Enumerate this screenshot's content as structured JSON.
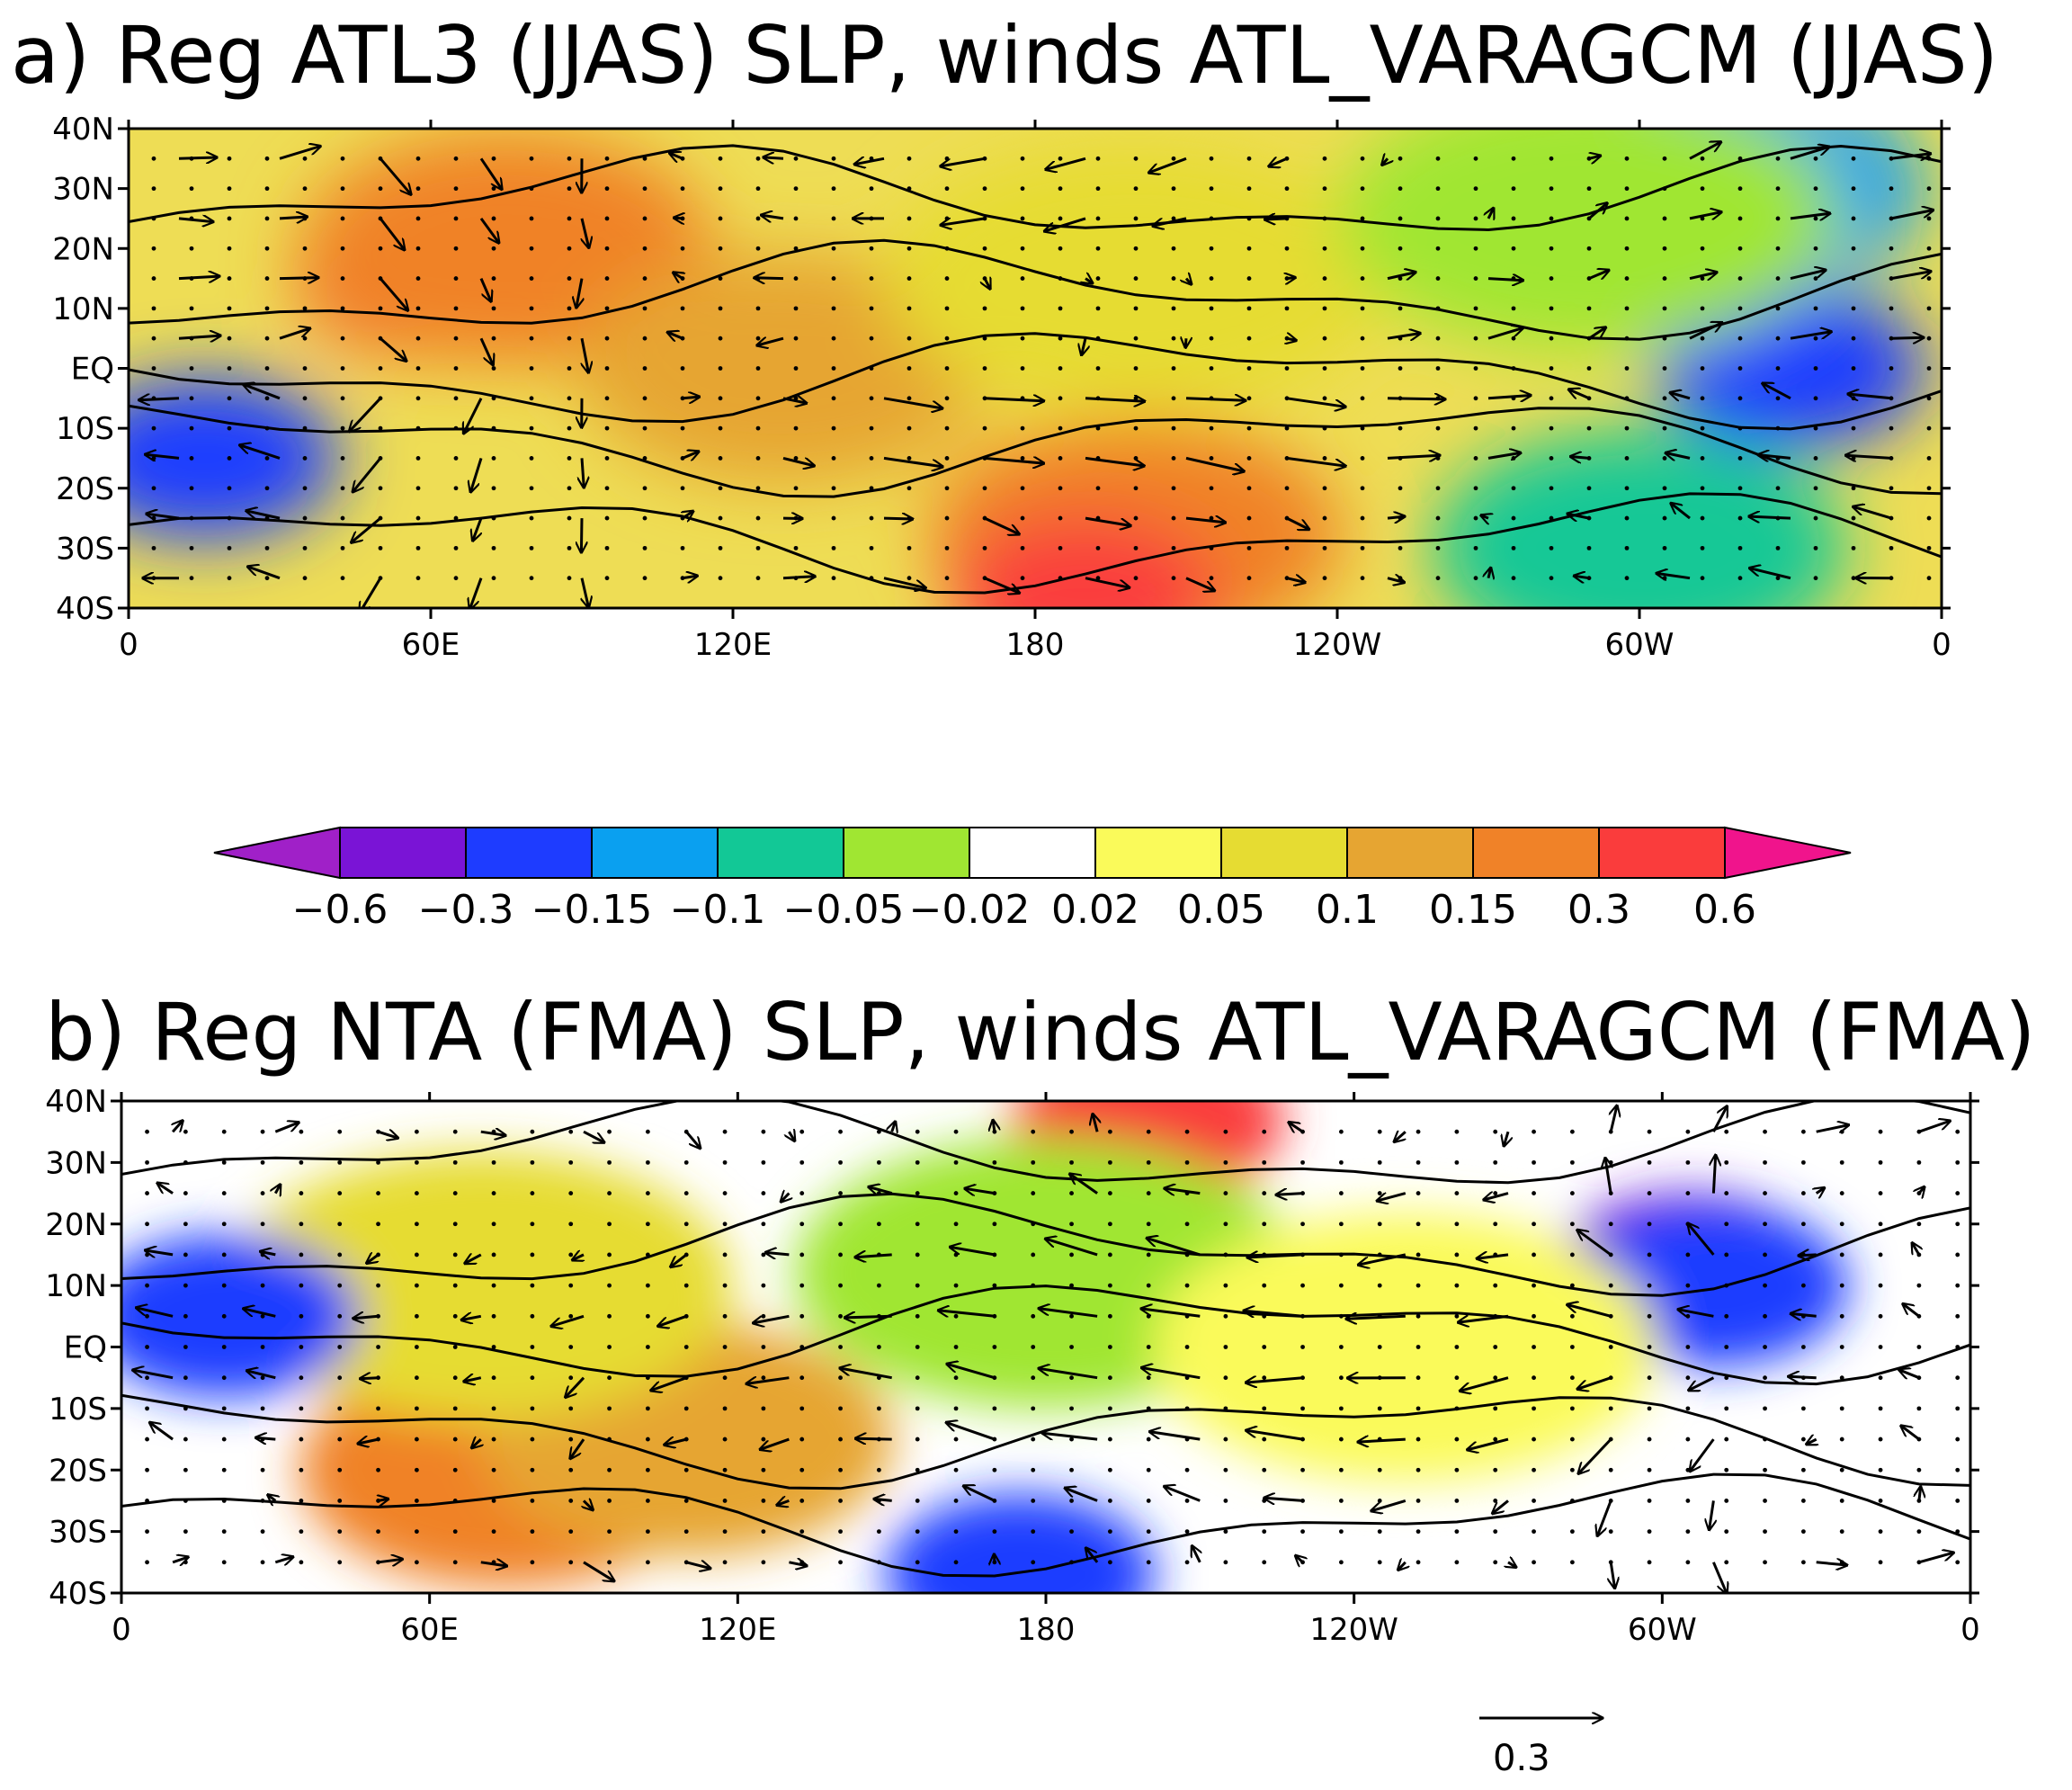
{
  "chart_data": [
    {
      "type": "heatmap",
      "title": "a) Reg ATL3 (JJAS) SLP, winds ATL_VARAGCM (JJAS)",
      "x_ticks": [
        "0",
        "60E",
        "120E",
        "180",
        "120W",
        "60W",
        "0"
      ],
      "y_ticks": [
        "40N",
        "30N",
        "20N",
        "10N",
        "EQ",
        "10S",
        "20S",
        "30S",
        "40S"
      ],
      "xlim": [
        0,
        360
      ],
      "ylim": [
        -40,
        40
      ],
      "field_regions": [
        {
          "lon": 60,
          "lat": 15,
          "value": 0.3
        },
        {
          "lon": 75,
          "lat": 20,
          "value": 0.15
        },
        {
          "lon": 130,
          "lat": 0,
          "value": 0.1
        },
        {
          "lon": 200,
          "lat": -28,
          "value": 0.15
        },
        {
          "lon": 190,
          "lat": -38,
          "value": 0.3
        },
        {
          "lon": 200,
          "lat": 15,
          "value": 0.05
        },
        {
          "lon": 15,
          "lat": -15,
          "value": -0.3
        },
        {
          "lon": 330,
          "lat": 0,
          "value": -0.3
        },
        {
          "lon": 315,
          "lat": 30,
          "value": -0.15
        },
        {
          "lon": 290,
          "lat": 25,
          "value": -0.05
        },
        {
          "lon": 300,
          "lat": -30,
          "value": -0.1
        }
      ]
    },
    {
      "type": "heatmap",
      "title": "b) Reg NTA (FMA) SLP, winds ATL_VARAGCM (FMA)",
      "x_ticks": [
        "0",
        "60E",
        "120E",
        "180",
        "120W",
        "60W",
        "0"
      ],
      "y_ticks": [
        "40N",
        "30N",
        "20N",
        "10N",
        "EQ",
        "10S",
        "20S",
        "30S",
        "40S"
      ],
      "xlim": [
        0,
        360
      ],
      "ylim": [
        -40,
        40
      ],
      "field_regions": [
        {
          "lon": 200,
          "lat": 37,
          "value": 0.3
        },
        {
          "lon": 75,
          "lat": -20,
          "value": 0.15
        },
        {
          "lon": 110,
          "lat": -15,
          "value": 0.1
        },
        {
          "lon": 70,
          "lat": 10,
          "value": 0.05
        },
        {
          "lon": 20,
          "lat": 5,
          "value": -0.3
        },
        {
          "lon": 305,
          "lat": 12,
          "value": -0.6
        },
        {
          "lon": 310,
          "lat": 10,
          "value": -0.3
        },
        {
          "lon": 175,
          "lat": -37,
          "value": -0.3
        },
        {
          "lon": 180,
          "lat": 12,
          "value": -0.05
        },
        {
          "lon": 250,
          "lat": 0,
          "value": 0.02
        }
      ]
    }
  ],
  "colorbar": {
    "tick_labels": [
      "−0.6",
      "−0.3",
      "−0.15",
      "−0.1",
      "−0.05",
      "−0.02",
      "0.02",
      "0.05",
      "0.1",
      "0.15",
      "0.3",
      "0.6"
    ],
    "colors": [
      "#a020c8",
      "#7a14d6",
      "#1e3cff",
      "#0aa0f0",
      "#12c896",
      "#a0e632",
      "#ffffff",
      "#fafa5a",
      "#e6dc32",
      "#e6a532",
      "#f08228",
      "#fa3c3c",
      "#f0148c"
    ]
  },
  "vector_key": {
    "value": 0.3,
    "label": "0.3"
  }
}
